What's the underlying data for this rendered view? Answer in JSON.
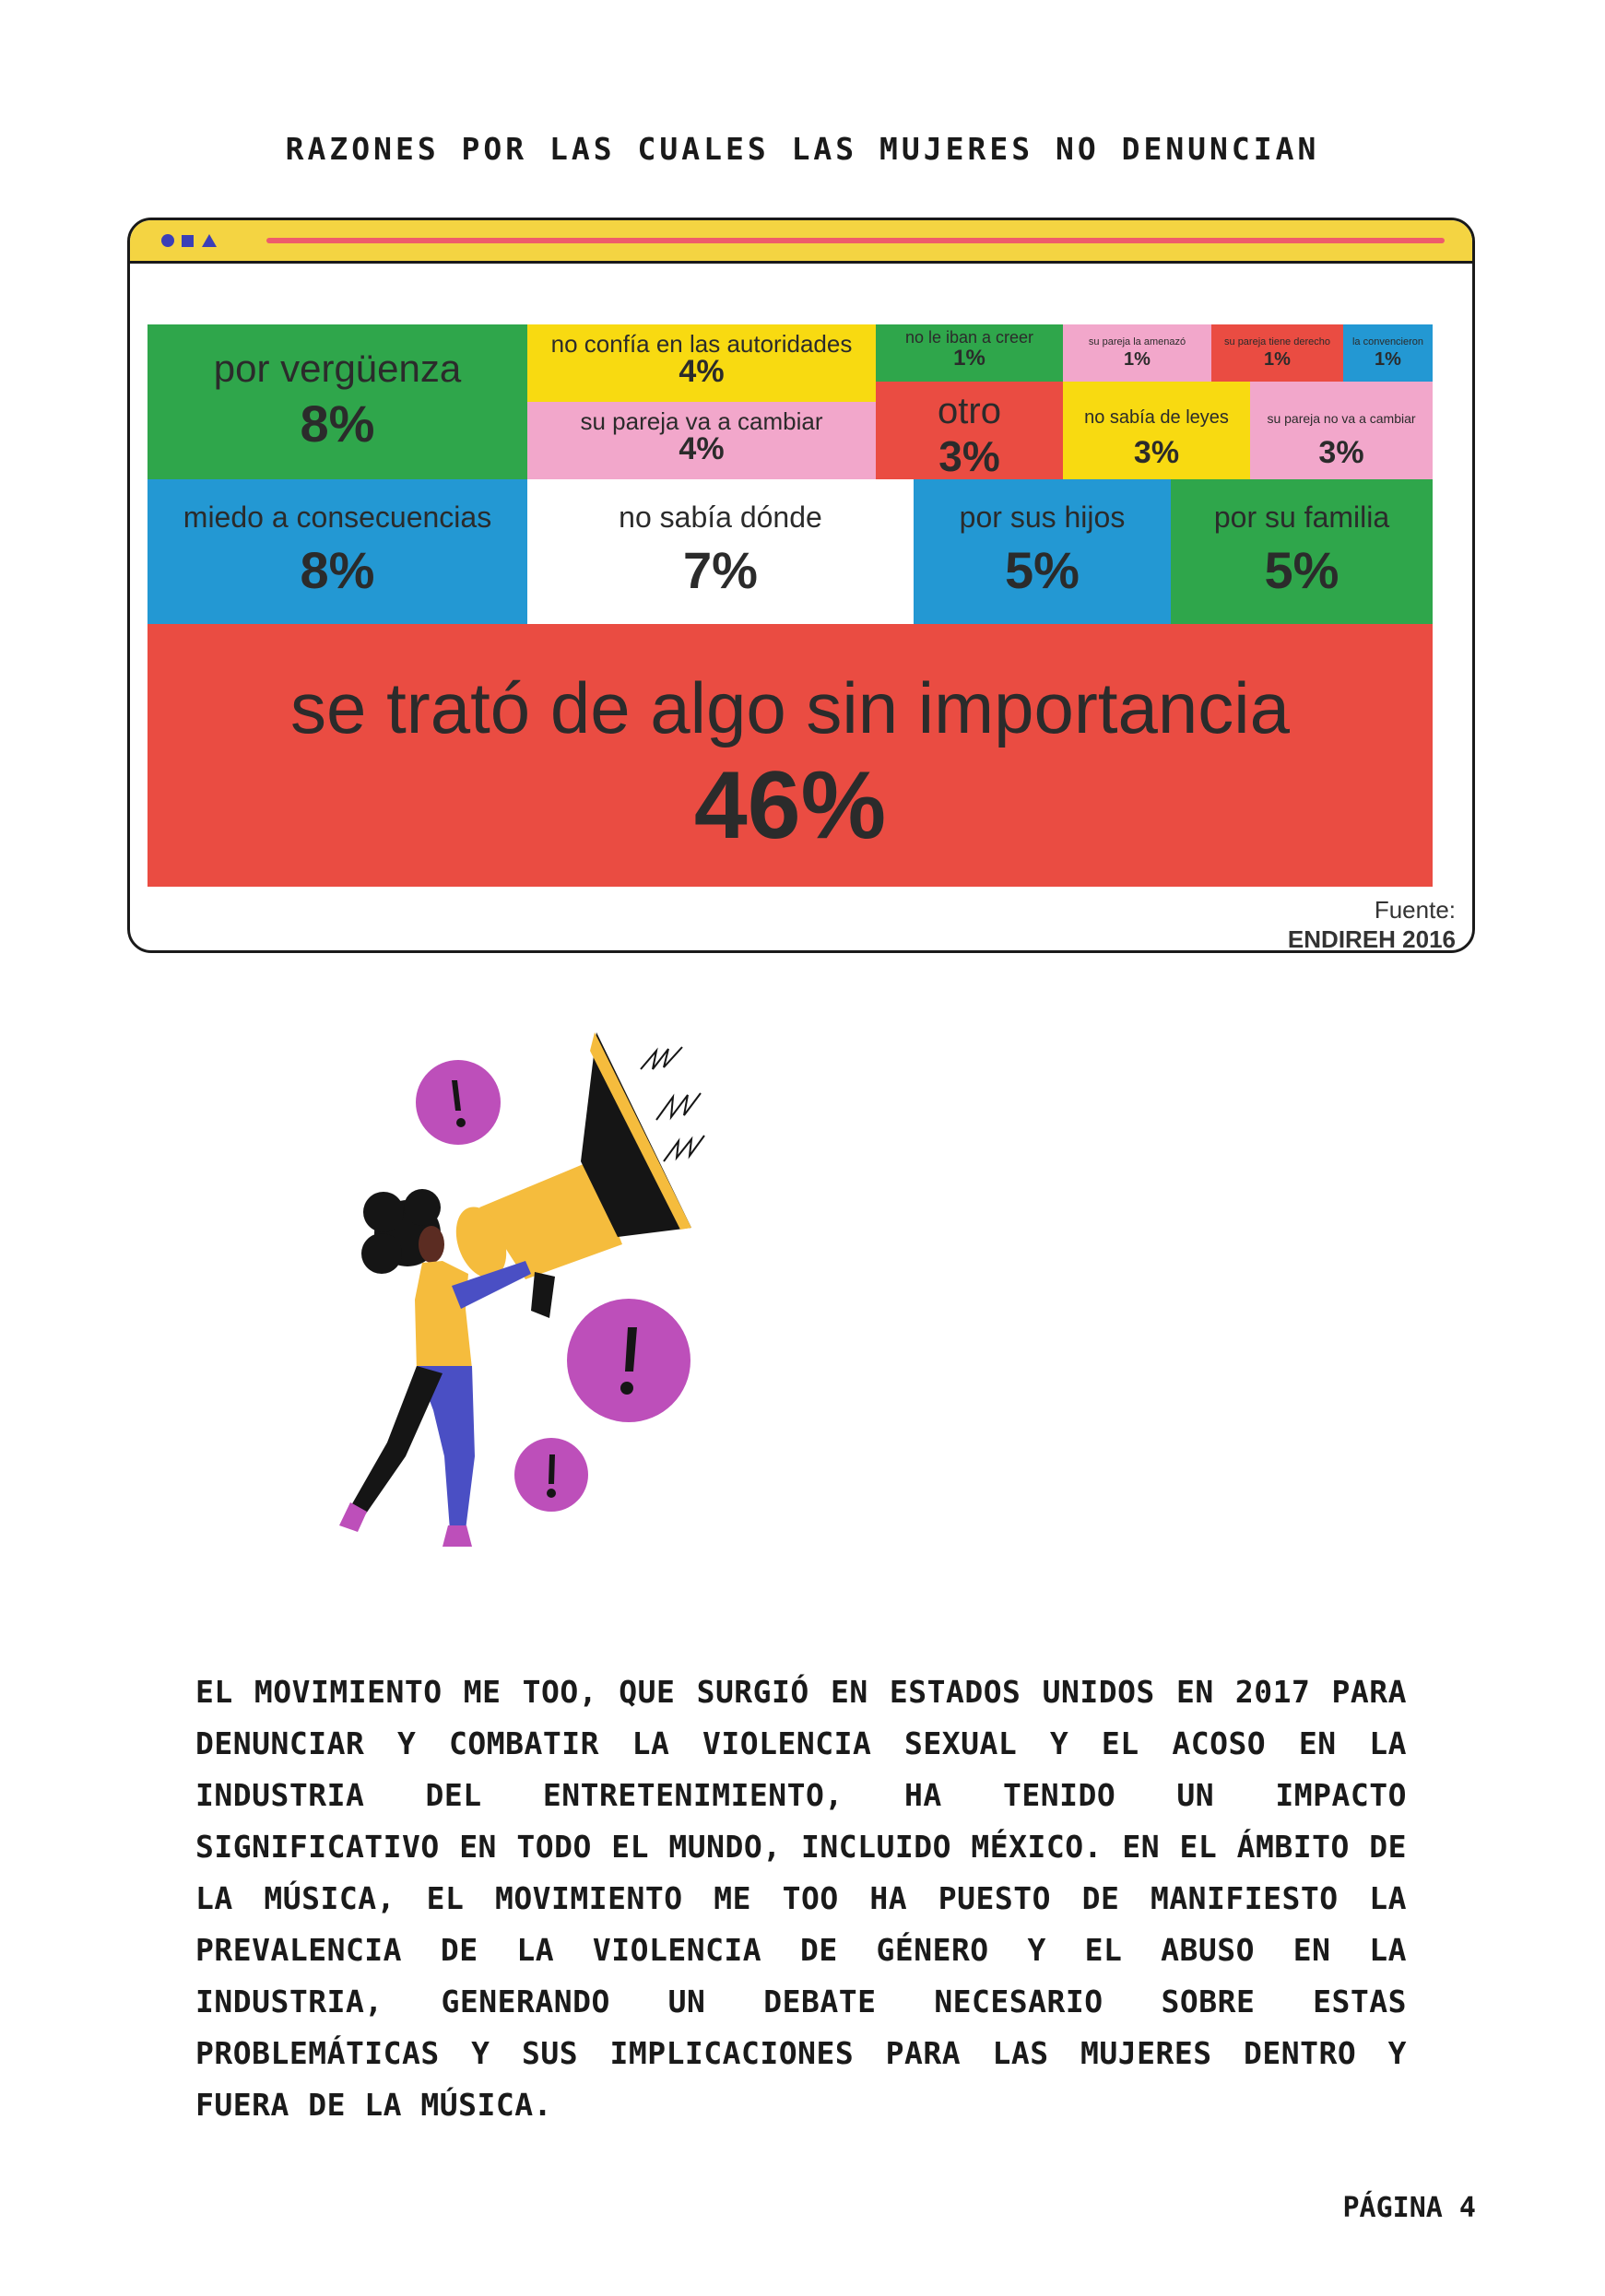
{
  "page": {
    "title": "RAZONES POR LAS CUALES LAS MUJERES NO DENUNCIAN",
    "body": "EL MOVIMIENTO ME TOO, QUE SURGIÓ EN ESTADOS UNIDOS EN 2017 PARA DENUNCIAR Y COMBATIR LA VIOLENCIA SEXUAL Y EL ACOSO EN LA INDUSTRIA DEL ENTRETENIMIENTO, HA TENIDO UN IMPACTO SIGNIFICATIVO EN TODO EL MUNDO, INCLUIDO MÉXICO. EN EL ÁMBITO DE LA MÚSICA, EL MOVIMIENTO ME TOO HA PUESTO DE MANIFIESTO LA PREVALENCIA DE LA VIOLENCIA DE GÉNERO Y EL ABUSO EN LA INDUSTRIA, GENERANDO UN DEBATE NECESARIO SOBRE ESTAS PROBLEMÁTICAS Y SUS IMPLICACIONES PARA LAS MUJERES DENTRO Y FUERA DE LA MÚSICA.",
    "page_number": "PÁGINA 4"
  },
  "source": {
    "label": "Fuente:",
    "value": "ENDIREH 2016"
  },
  "colors": {
    "green": "#2fa64b",
    "yellow": "#f8da11",
    "pink": "#f2a7cb",
    "red": "#ea4c42",
    "blue": "#2398d3",
    "white": "#ffffff",
    "frame_bar": "#f4d442",
    "accent_line": "#ee5c6b",
    "accent_shapes": "#3b3fb6"
  },
  "chart_data": {
    "type": "treemap",
    "title": "",
    "unit": "%",
    "items": [
      {
        "label": "por vergüenza",
        "value": 8,
        "display": "8%",
        "color": "green"
      },
      {
        "label": "no confía en las autoridades",
        "value": 4,
        "display": "4%",
        "color": "yellow"
      },
      {
        "label": "su pareja va a cambiar",
        "value": 4,
        "display": "4%",
        "color": "pink"
      },
      {
        "label": "no le iban a creer",
        "value": 1,
        "display": "1%",
        "color": "green"
      },
      {
        "label": "su pareja la amenazó",
        "value": 1,
        "display": "1%",
        "color": "pink"
      },
      {
        "label": "su pareja tiene derecho",
        "value": 1,
        "display": "1%",
        "color": "red"
      },
      {
        "label": "la convencieron",
        "value": 1,
        "display": "1%",
        "color": "blue"
      },
      {
        "label": "otro",
        "value": 3,
        "display": "3%",
        "color": "red"
      },
      {
        "label": "no sabía de leyes",
        "value": 3,
        "display": "3%",
        "color": "yellow"
      },
      {
        "label": "su pareja no va a cambiar",
        "value": 3,
        "display": "3%",
        "color": "pink"
      },
      {
        "label": "miedo a consecuencias",
        "value": 8,
        "display": "8%",
        "color": "blue"
      },
      {
        "label": "no sabía dónde",
        "value": 7,
        "display": "7%",
        "color": "white"
      },
      {
        "label": "por sus hijos",
        "value": 5,
        "display": "5%",
        "color": "blue"
      },
      {
        "label": "por su familia",
        "value": 5,
        "display": "5%",
        "color": "green"
      },
      {
        "label": "se trató de algo sin importancia",
        "value": 46,
        "display": "46%",
        "color": "red"
      }
    ]
  }
}
